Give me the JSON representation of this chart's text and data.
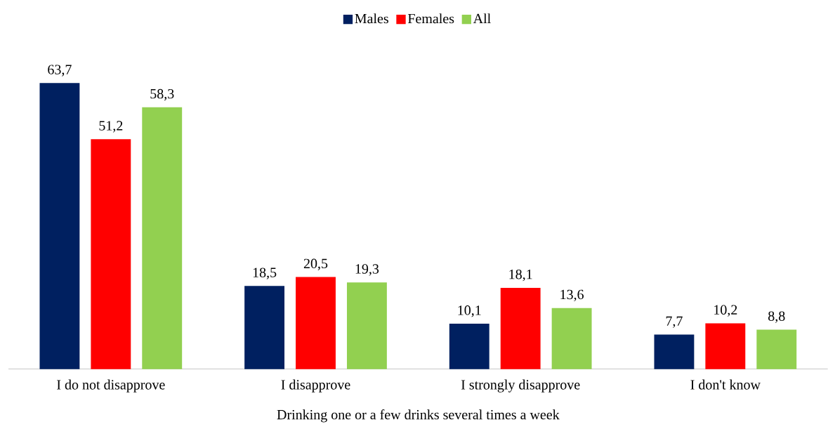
{
  "chart_data": {
    "type": "bar",
    "xlabel": "Drinking one or a few drinks several times a week",
    "categories": [
      "I do not disapprove",
      "I disapprove",
      "I strongly disapprove",
      "I don't know"
    ],
    "series": [
      {
        "name": "Males",
        "color": "#002060",
        "values": [
          63.7,
          18.5,
          10.1,
          7.7
        ],
        "value_labels": [
          "63,7",
          "18,5",
          "10,1",
          "7,7"
        ]
      },
      {
        "name": "Females",
        "color": "#ff0000",
        "values": [
          51.2,
          20.5,
          18.1,
          10.2
        ],
        "value_labels": [
          "51,2",
          "20,5",
          "18,1",
          "10,2"
        ]
      },
      {
        "name": "All",
        "color": "#92d050",
        "values": [
          58.3,
          19.3,
          13.6,
          8.8
        ],
        "value_labels": [
          "58,3",
          "19,3",
          "13,6",
          "8,8"
        ]
      }
    ],
    "legend": "top"
  }
}
